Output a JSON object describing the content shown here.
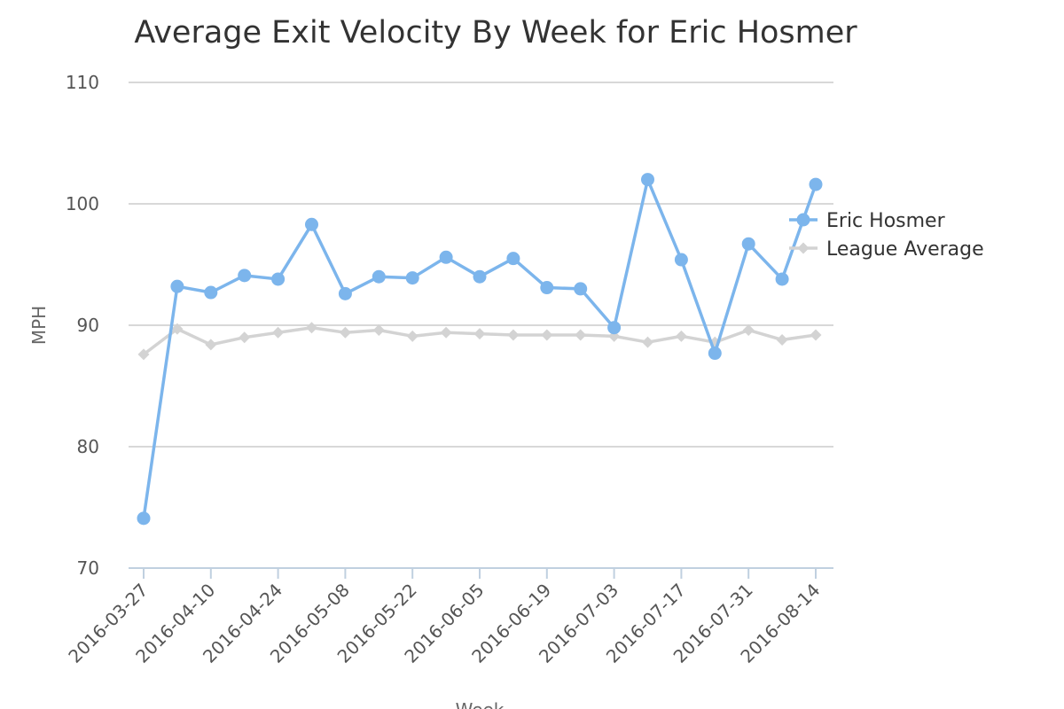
{
  "chart_data": {
    "type": "line",
    "title": "Average Exit Velocity By Week for Eric Hosmer",
    "xlabel": "Week",
    "ylabel": "MPH",
    "ylim": [
      70,
      110
    ],
    "yticks": [
      "70",
      "80",
      "90",
      "100",
      "110"
    ],
    "grid": true,
    "legend_position": "right",
    "x_tick_labels": [
      "2016-03-27",
      "2016-04-10",
      "2016-04-24",
      "2016-05-08",
      "2016-05-22",
      "2016-06-05",
      "2016-06-19",
      "2016-07-03",
      "2016-07-17",
      "2016-07-31",
      "2016-08-14"
    ],
    "x": [
      "2016-03-27",
      "2016-04-03",
      "2016-04-10",
      "2016-04-17",
      "2016-04-24",
      "2016-05-01",
      "2016-05-08",
      "2016-05-15",
      "2016-05-22",
      "2016-05-29",
      "2016-06-05",
      "2016-06-12",
      "2016-06-19",
      "2016-06-26",
      "2016-07-03",
      "2016-07-10",
      "2016-07-17",
      "2016-07-24",
      "2016-07-31",
      "2016-08-07",
      "2016-08-14"
    ],
    "series": [
      {
        "name": "Eric Hosmer",
        "color": "#7cb5ec",
        "marker": "circle",
        "values": [
          74.1,
          93.2,
          92.7,
          94.1,
          93.8,
          98.3,
          92.6,
          94.0,
          93.9,
          95.6,
          94.0,
          95.5,
          93.1,
          93.0,
          89.8,
          102.0,
          95.4,
          87.7,
          96.7,
          93.8,
          101.6
        ]
      },
      {
        "name": "League Average",
        "color": "#d3d3d3",
        "marker": "diamond",
        "values": [
          87.6,
          89.7,
          88.4,
          89.0,
          89.4,
          89.8,
          89.4,
          89.6,
          89.1,
          89.4,
          89.3,
          89.2,
          89.2,
          89.2,
          89.1,
          88.6,
          89.1,
          88.6,
          89.6,
          88.8,
          89.2
        ]
      }
    ]
  }
}
